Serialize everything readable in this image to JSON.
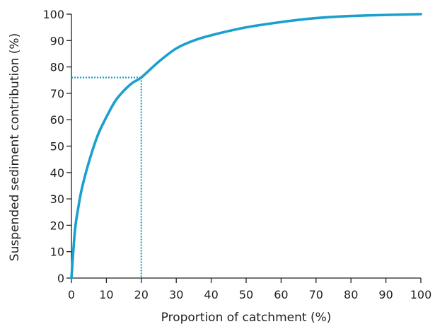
{
  "chart_data": {
    "type": "line",
    "title": "",
    "xlabel": "Proportion of catchment (%)",
    "ylabel": "Suspended sediment contribution (%)",
    "xlim": [
      0,
      100
    ],
    "ylim": [
      0,
      100
    ],
    "x_ticks": [
      0,
      10,
      20,
      30,
      40,
      50,
      60,
      70,
      80,
      90,
      100
    ],
    "y_ticks": [
      0,
      10,
      20,
      30,
      40,
      50,
      60,
      70,
      80,
      90,
      100
    ],
    "x_tick_labels": [
      "0",
      "10",
      "20",
      "30",
      "40",
      "50",
      "60",
      "70",
      "80",
      "90",
      "100"
    ],
    "y_tick_labels": [
      "0",
      "10",
      "20",
      "30",
      "40",
      "50",
      "60",
      "70",
      "80",
      "90",
      "100"
    ],
    "grid": false,
    "legend": "none",
    "series": [
      {
        "x": [
          0,
          1,
          2,
          3,
          5,
          7.5,
          10,
          12.5,
          15,
          17.5,
          20,
          25,
          30,
          35,
          40,
          50,
          60,
          70,
          80,
          90,
          100
        ],
        "y": [
          0,
          18,
          27,
          34,
          44,
          54,
          61,
          67,
          71,
          74,
          76,
          82,
          87,
          90,
          92,
          95,
          97,
          98.5,
          99.3,
          99.7,
          100
        ],
        "color": "#1aa0cf"
      }
    ],
    "annotations": [
      {
        "type": "reference-lines",
        "x": 20,
        "y": 76,
        "style": "dotted",
        "color": "#1aa0cf"
      }
    ]
  }
}
